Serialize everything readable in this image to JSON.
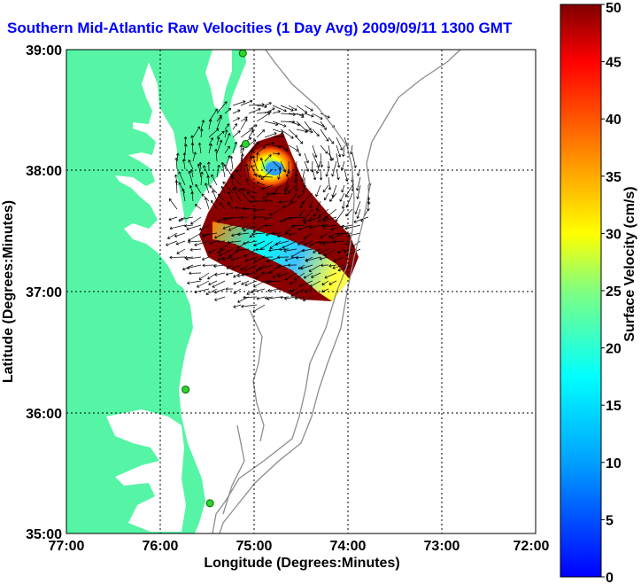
{
  "title": "Southern Mid-Atlantic Raw Velocities (1 Day Avg) 2009/09/11 1300 GMT",
  "map": {
    "xlabel": "Longitude (Degrees:Minutes)",
    "ylabel": "Latitude (Degrees:Minutes)",
    "x_ticks": [
      "77:00",
      "76:00",
      "75:00",
      "74:00",
      "73:00",
      "72:00"
    ],
    "y_ticks": [
      "39:00",
      "38:00",
      "37:00",
      "36:00",
      "35:00"
    ],
    "lon_range": [
      -77,
      -72
    ],
    "lat_range": [
      35,
      39
    ],
    "grid": true
  },
  "colorbar": {
    "label": "Surface Velocity (cm/s)",
    "min": 0,
    "max": 50,
    "ticks": [
      "0",
      "5",
      "10",
      "15",
      "20",
      "25",
      "30",
      "35",
      "40",
      "45",
      "50"
    ]
  },
  "colors": {
    "title": "#0000ff",
    "land": "#55f5a5",
    "bathymetry": "#8c8c8c",
    "station": "#2fd32f"
  },
  "stations": [
    {
      "lon": -75.12,
      "lat": 38.97
    },
    {
      "lon": -75.09,
      "lat": 38.22
    },
    {
      "lon": -75.73,
      "lat": 36.19
    },
    {
      "lon": -75.47,
      "lat": 35.25
    }
  ]
}
